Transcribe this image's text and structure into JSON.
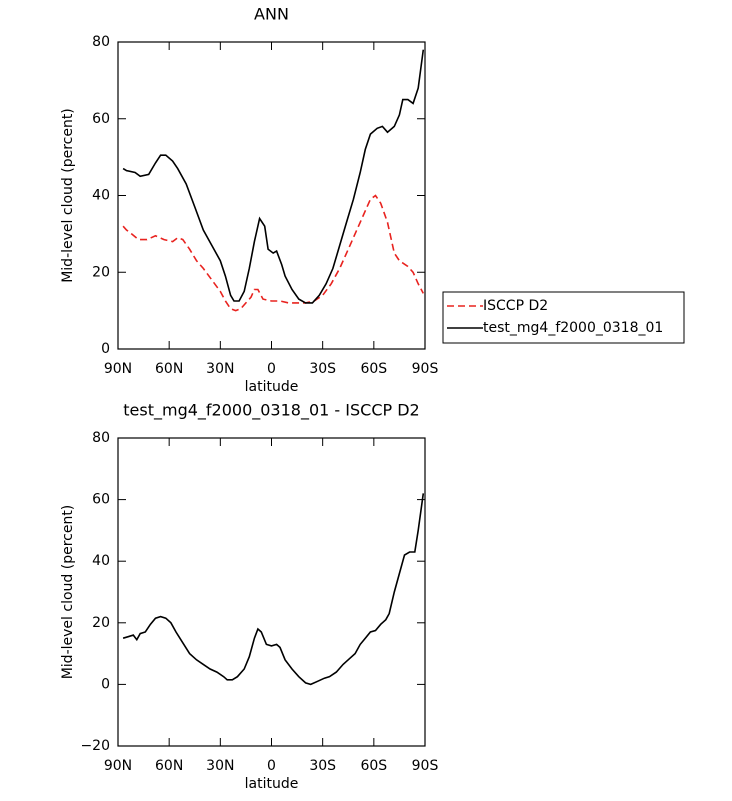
{
  "chart_data": [
    {
      "type": "line",
      "title": "ANN",
      "xlabel": "latitude",
      "ylabel": "Mid-level cloud (percent)",
      "xlim": [
        90,
        -90
      ],
      "xticks": [
        {
          "value": 90,
          "label": "90N"
        },
        {
          "value": 60,
          "label": "60N"
        },
        {
          "value": 30,
          "label": "30N"
        },
        0,
        {
          "value": -30,
          "label": "30S"
        },
        {
          "value": -60,
          "label": "60S"
        },
        {
          "value": -90,
          "label": "90S"
        }
      ],
      "ylim": [
        0,
        80
      ],
      "yticks": [
        0,
        20,
        40,
        60,
        80
      ],
      "legend": "right",
      "series": [
        {
          "name": "ISCCP D2",
          "color": "#e8231f",
          "dash": true,
          "x": [
            87,
            85,
            82,
            78,
            73,
            68,
            63,
            58,
            55,
            52,
            48,
            44,
            40,
            35,
            30,
            27,
            24,
            21,
            18,
            15,
            12,
            10,
            8,
            5,
            0,
            -5,
            -10,
            -15,
            -20,
            -25,
            -30,
            -35,
            -40,
            -45,
            -50,
            -55,
            -58,
            -61,
            -64,
            -68,
            -72,
            -75,
            -80,
            -83,
            -86,
            -89
          ],
          "values": [
            32,
            31,
            30,
            28.5,
            28.5,
            29.5,
            28.5,
            28,
            29,
            28.5,
            26,
            23,
            21,
            18,
            15,
            12.5,
            10.5,
            10,
            10.5,
            12,
            13.5,
            15.5,
            15.5,
            13,
            12.5,
            12.5,
            12,
            12,
            12,
            12.5,
            14,
            17,
            21,
            26,
            31,
            36,
            39,
            40,
            38,
            33,
            25,
            23,
            21.5,
            20,
            17,
            14.5
          ]
        },
        {
          "name": "test_mg4_f2000_0318_01",
          "color": "#000000",
          "dash": false,
          "x": [
            87,
            85,
            80,
            77,
            72,
            68,
            65,
            62,
            58,
            55,
            50,
            45,
            40,
            35,
            30,
            27,
            24,
            22,
            19,
            16,
            13,
            10,
            7,
            4,
            2,
            -1,
            -3,
            -6,
            -8,
            -12,
            -16,
            -20,
            -24,
            -28,
            -32,
            -36,
            -40,
            -44,
            -48,
            -52,
            -55,
            -58,
            -62,
            -65,
            -68,
            -72,
            -75,
            -77,
            -80,
            -83,
            -86,
            -89
          ],
          "values": [
            47,
            46.5,
            46,
            45,
            45.5,
            48.5,
            50.5,
            50.5,
            49,
            47,
            43,
            37,
            31,
            27,
            23,
            19,
            14,
            12.5,
            12.5,
            15,
            21,
            28,
            34,
            32,
            26,
            25,
            25.5,
            22,
            19,
            15.5,
            13,
            12,
            12,
            14,
            17,
            21,
            27,
            33,
            39,
            46,
            52,
            56,
            57.5,
            58,
            56.5,
            58,
            61,
            65,
            65,
            64,
            68,
            78
          ]
        }
      ]
    },
    {
      "type": "line",
      "title": "test_mg4_f2000_0318_01 - ISCCP D2",
      "xlabel": "latitude",
      "ylabel": "Mid-level cloud (percent)",
      "xlim": [
        90,
        -90
      ],
      "xticks": [
        {
          "value": 90,
          "label": "90N"
        },
        {
          "value": 60,
          "label": "60N"
        },
        {
          "value": 30,
          "label": "30N"
        },
        0,
        {
          "value": -30,
          "label": "30S"
        },
        {
          "value": -60,
          "label": "60S"
        },
        {
          "value": -90,
          "label": "90S"
        }
      ],
      "ylim": [
        -20,
        80
      ],
      "yticks": [
        {
          "value": -20,
          "label": "−20"
        },
        0,
        20,
        40,
        60,
        80
      ],
      "series": [
        {
          "color": "#000000",
          "dash": false,
          "x": [
            87,
            84,
            81,
            79,
            77,
            74,
            71,
            68,
            65,
            62,
            59,
            56,
            52,
            48,
            44,
            40,
            36,
            32,
            28,
            26,
            23,
            20,
            16,
            13,
            10,
            8,
            6,
            3,
            0,
            -3,
            -5,
            -8,
            -12,
            -16,
            -20,
            -23,
            -27,
            -31,
            -34,
            -38,
            -42,
            -46,
            -49,
            -52,
            -55,
            -58,
            -61,
            -64,
            -67,
            -69,
            -72,
            -75,
            -78,
            -81,
            -84,
            -86,
            -89
          ],
          "values": [
            15,
            15.5,
            16,
            14.5,
            16.5,
            17,
            19.5,
            21.5,
            22,
            21.5,
            20,
            17,
            13.5,
            10,
            8,
            6.5,
            5,
            4,
            2.5,
            1.5,
            1.5,
            2.5,
            5,
            9,
            15,
            18,
            17,
            13,
            12.5,
            13,
            12,
            8,
            5,
            2.5,
            0.5,
            0,
            1,
            2,
            2.5,
            4,
            6.5,
            8.5,
            10,
            13,
            15,
            17,
            17.5,
            19.5,
            21,
            23,
            30,
            36,
            42,
            43,
            43,
            50,
            62
          ]
        }
      ]
    }
  ]
}
